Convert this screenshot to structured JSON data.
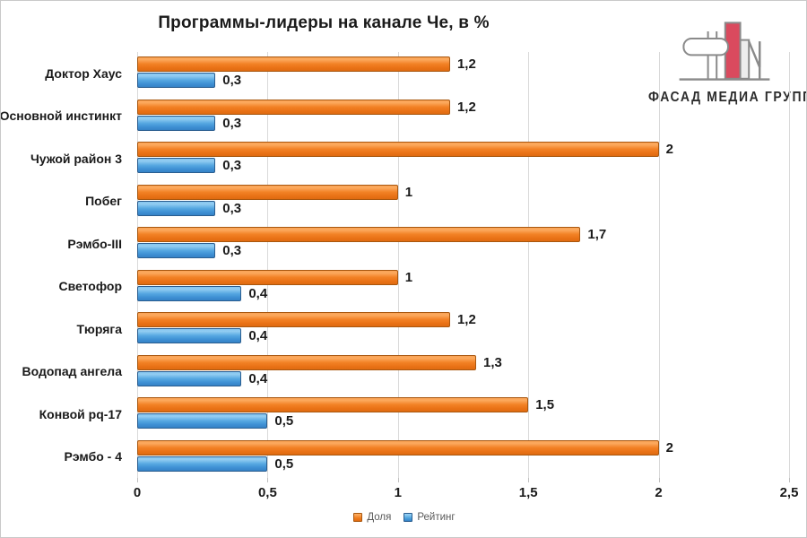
{
  "page": {
    "title": "Программы-лидеры на канале Че, в %"
  },
  "logo": {
    "text": "ФАСАД МЕДИА ГРУПП",
    "red_color": "#da4a5e",
    "outline_color": "#8a8a8a"
  },
  "chart_data": {
    "type": "bar",
    "orientation": "horizontal",
    "title": "Программы-лидеры на канале Че, в %",
    "categories": [
      "Доктор Хаус",
      "Основной инстинкт",
      "Чужой район 3",
      "Побег",
      "Рэмбо-III",
      "Светофор",
      "Тюряга",
      "Водопад ангела",
      "Конвой pq-17",
      "Рэмбо - 4"
    ],
    "series": [
      {
        "name": "Доля",
        "color": "#f07d1d",
        "values": [
          1.2,
          1.2,
          2,
          1,
          1.7,
          1,
          1.2,
          1.3,
          1.5,
          2
        ],
        "labels": [
          "1,2",
          "1,2",
          "2",
          "1",
          "1,7",
          "1",
          "1,2",
          "1,3",
          "1,5",
          "2"
        ]
      },
      {
        "name": "Рейтинг",
        "color": "#4da3de",
        "values": [
          0.3,
          0.3,
          0.3,
          0.3,
          0.3,
          0.4,
          0.4,
          0.4,
          0.5,
          0.5
        ],
        "labels": [
          "0,3",
          "0,3",
          "0,3",
          "0,3",
          "0,3",
          "0,4",
          "0,4",
          "0,4",
          "0,5",
          "0,5"
        ]
      }
    ],
    "xlim": [
      0,
      2.5
    ],
    "x_ticks": [
      {
        "value": 0,
        "label": "0"
      },
      {
        "value": 0.5,
        "label": "0,5"
      },
      {
        "value": 1,
        "label": "1"
      },
      {
        "value": 1.5,
        "label": "1,5"
      },
      {
        "value": 2,
        "label": "2"
      },
      {
        "value": 2.5,
        "label": "2,5"
      }
    ],
    "grid": "vertical",
    "legend_position": "bottom"
  }
}
